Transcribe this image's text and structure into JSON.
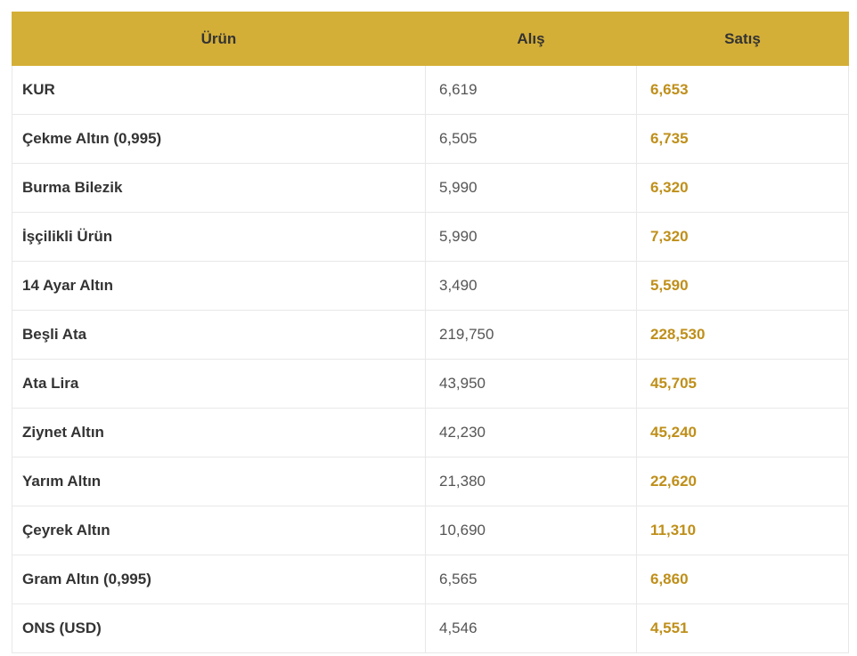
{
  "table": {
    "header": [
      "Ürün",
      "Alış",
      "Satış"
    ],
    "rows": [
      [
        "KUR",
        "6,619",
        "6,653"
      ],
      [
        "Çekme Altın (0,995)",
        "6,505",
        "6,735"
      ],
      [
        "Burma Bilezik",
        "5,990",
        "6,320"
      ],
      [
        "İşçilikli Ürün",
        "5,990",
        "7,320"
      ],
      [
        "14 Ayar Altın",
        "3,490",
        "5,590"
      ],
      [
        "Beşli Ata",
        "219,750",
        "228,530"
      ],
      [
        "Ata Lira",
        "43,950",
        "45,705"
      ],
      [
        "Ziynet Altın",
        "42,230",
        "45,240"
      ],
      [
        "Yarım Altın",
        "21,380",
        "22,620"
      ],
      [
        "Çeyrek Altın",
        "10,690",
        "11,310"
      ],
      [
        "Gram Altın (0,995)",
        "6,565",
        "6,860"
      ],
      [
        "ONS (USD)",
        "4,546",
        "4,551"
      ]
    ]
  }
}
